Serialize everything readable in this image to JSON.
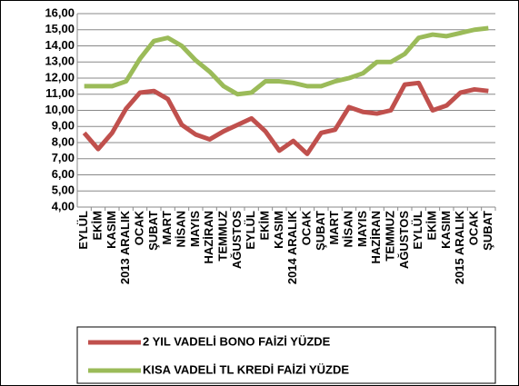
{
  "chart_data": {
    "type": "line",
    "categories": [
      "EYLÜL",
      "EKİM",
      "KASIM",
      "2013 ARALIK",
      "OCAK",
      "ŞUBAT",
      "MART",
      "NİSAN",
      "MAYIS",
      "HAZİRAN",
      "TEMMUZ",
      "AĞUSTOS",
      "EYLÜL",
      "EKİM",
      "KASIM",
      "2014 ARALIK",
      "OCAK",
      "ŞUBAT",
      "MART",
      "NİSAN",
      "MAYIS",
      "HAZİRAN",
      "TEMMUZ",
      "AĞUSTOS",
      "EYLÜL",
      "EKİM",
      "KASIM",
      "2015 ARALIK",
      "OCAK",
      "ŞUBAT"
    ],
    "series": [
      {
        "name": "2 YIL VADELİ BONO FAİZİ YÜZDE",
        "color": "#c0504d",
        "values": [
          8.6,
          7.6,
          8.6,
          10.1,
          11.1,
          11.2,
          10.7,
          9.1,
          8.5,
          8.2,
          8.7,
          9.1,
          9.5,
          8.7,
          7.5,
          8.1,
          7.3,
          8.6,
          8.8,
          10.2,
          9.9,
          9.8,
          10.0,
          11.6,
          11.7,
          10.0,
          10.3,
          11.1,
          11.3,
          11.2
        ]
      },
      {
        "name": "KISA VADELİ TL KREDİ FAİZİ YÜZDE",
        "color": "#9bbb59",
        "values": [
          11.5,
          11.5,
          11.5,
          11.8,
          13.2,
          14.3,
          14.5,
          14.0,
          13.1,
          12.4,
          11.5,
          11.0,
          11.1,
          11.8,
          11.8,
          11.7,
          11.5,
          11.5,
          11.8,
          12.0,
          12.3,
          13.0,
          13.0,
          13.5,
          14.5,
          14.7,
          14.6,
          14.8,
          15.0,
          15.1
        ]
      }
    ],
    "ylim": [
      4,
      16
    ],
    "yticks": [
      {
        "value": 4,
        "label": "4,00"
      },
      {
        "value": 5,
        "label": "5,00"
      },
      {
        "value": 6,
        "label": "6,00"
      },
      {
        "value": 7,
        "label": "7,00"
      },
      {
        "value": 8,
        "label": "8,00"
      },
      {
        "value": 9,
        "label": "9,00"
      },
      {
        "value": 10,
        "label": "10,00"
      },
      {
        "value": 11,
        "label": "11,00"
      },
      {
        "value": 12,
        "label": "12,00"
      },
      {
        "value": 13,
        "label": "13,00"
      },
      {
        "value": 14,
        "label": "14,00"
      },
      {
        "value": 15,
        "label": "15,00"
      },
      {
        "value": 16,
        "label": "16,00"
      }
    ],
    "grid": true,
    "legend": "bottom"
  }
}
